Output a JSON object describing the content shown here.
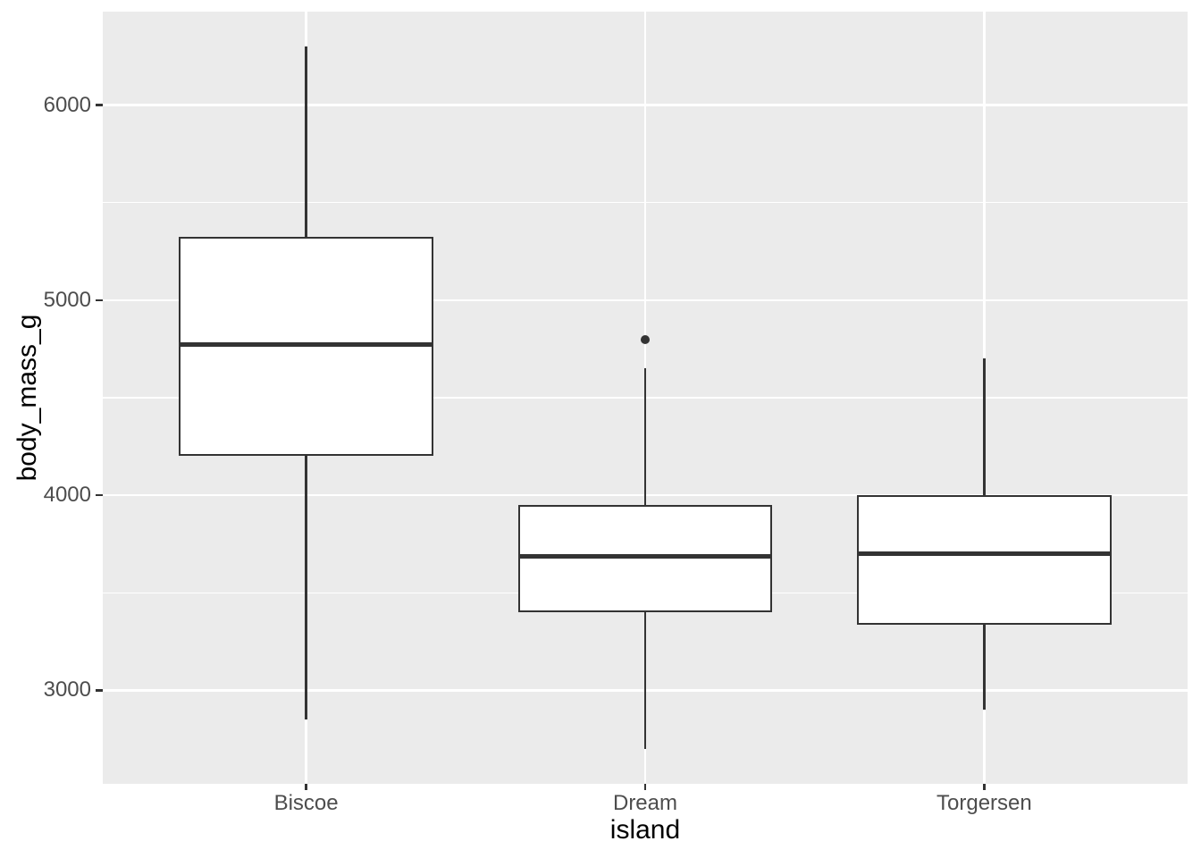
{
  "figure": {
    "bg_color": "#FFFFFF",
    "panel_bg_color": "#EBEBEB",
    "grid_color": "#FFFFFF",
    "box_fill_color": "#FFFFFF",
    "stroke_color": "#333333",
    "tick_label_color": "#4D4D4D",
    "axis_title_color": "#000000"
  },
  "chart_data": {
    "type": "boxplot",
    "title": "",
    "xlabel": "island",
    "ylabel": "body_mass_g",
    "categories": [
      "Biscoe",
      "Dream",
      "Torgersen"
    ],
    "series": [
      {
        "category": "Biscoe",
        "whisker_low": 2850,
        "q1": 4200,
        "median": 4775,
        "q3": 5325,
        "whisker_high": 6300,
        "outliers": []
      },
      {
        "category": "Dream",
        "whisker_low": 2700,
        "q1": 3400,
        "median": 3687.5,
        "q3": 3950,
        "whisker_high": 4650,
        "outliers": [
          4800
        ]
      },
      {
        "category": "Torgersen",
        "whisker_low": 2900,
        "q1": 3337.5,
        "median": 3700,
        "q3": 4000,
        "whisker_high": 4700,
        "outliers": []
      }
    ],
    "y_axis": {
      "major_ticks": [
        {
          "value": 3000,
          "label": "3000"
        },
        {
          "value": 4000,
          "label": "4000"
        },
        {
          "value": 5000,
          "label": "5000"
        },
        {
          "value": 6000,
          "label": "6000"
        }
      ],
      "minor_ticks": [
        3500,
        4500,
        5500
      ],
      "ylim": [
        2520,
        6480
      ]
    },
    "grid": true,
    "legend": false
  }
}
